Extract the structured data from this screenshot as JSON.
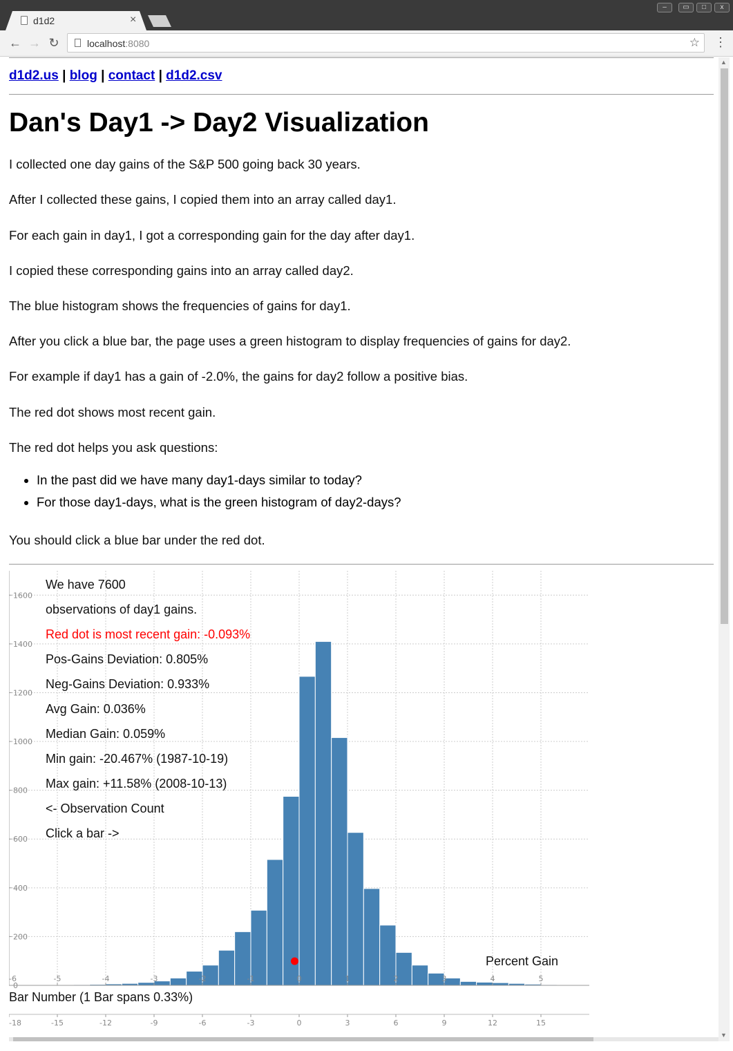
{
  "browser": {
    "tab_title": "d1d2",
    "tab_close": "×",
    "url_host": "localhost",
    "url_port": ":8080"
  },
  "nav": {
    "links": [
      "d1d2.us",
      "blog",
      "contact",
      "d1d2.csv"
    ],
    "separator": "|"
  },
  "page": {
    "title": "Dan's Day1 -> Day2 Visualization",
    "paragraphs": [
      "I collected one day gains of the S&P 500 going back 30 years.",
      "After I collected these gains, I copied them into an array called day1.",
      "For each gain in day1, I got a corresponding gain for the day after day1.",
      "I copied these corresponding gains into an array called day2.",
      "The blue histogram shows the frequencies of gains for day1.",
      "After you click a blue bar, the page uses a green histogram to display frequencies of gains for day2.",
      "For example if day1 has a gain of -2.0%, the gains for day2 follow a positive bias.",
      "The red dot shows most recent gain.",
      "The red dot helps you ask questions:"
    ],
    "questions": [
      "In the past did we have many day1-days similar to today?",
      "For those day1-days, what is the green histogram of day2-days?"
    ],
    "closing": "You should click a blue bar under the red dot."
  },
  "chart_info": {
    "lines": [
      "We have 7600",
      "observations of day1 gains.",
      "Red dot is most recent gain: -0.093%",
      "Pos-Gains Deviation: 0.805%",
      "Neg-Gains Deviation: 0.933%",
      "Avg Gain: 0.036%",
      "Median Gain: 0.059%",
      "Min gain: -20.467% (1987-10-19)",
      "Max gain: +11.58% (2008-10-13)",
      "<- Observation Count",
      "Click a bar ->"
    ],
    "red_line_index": 2,
    "percent_gain_label": "Percent Gain",
    "bar_number_label": "Bar Number (1 Bar spans 0.33%)"
  },
  "colors": {
    "bar": "#4682b4",
    "dot": "#ff0000",
    "link": "#0000cc"
  },
  "chart_data": {
    "type": "bar",
    "title": "",
    "ylabel": "",
    "xlabel": "Bar Number (1 Bar spans 0.33%)",
    "ylim": [
      0,
      1700
    ],
    "y_ticks": [
      0,
      200,
      400,
      600,
      800,
      1000,
      1200,
      1400,
      1600
    ],
    "bar_number_xlim": [
      -18,
      18
    ],
    "bar_number_ticks": [
      -18,
      -15,
      -12,
      -9,
      -6,
      -3,
      0,
      3,
      6,
      9,
      12,
      15
    ],
    "percent_gain_ticks": [
      "-6",
      "-5",
      "-4",
      "-3",
      "-2",
      "-1",
      "0",
      "1",
      "2",
      "3",
      "4",
      "5"
    ],
    "percent_gain_tick_bars": [
      -18,
      -15,
      -12,
      -9,
      -6,
      -3,
      0,
      3,
      6,
      9,
      12,
      15
    ],
    "bar_numbers": [
      -16,
      -15,
      -14,
      -13,
      -12,
      -11,
      -10,
      -9,
      -8,
      -7,
      -6,
      -5,
      -4,
      -3,
      -2,
      -1,
      0,
      1,
      2,
      3,
      4,
      5,
      6,
      7,
      8,
      9,
      10,
      11,
      12,
      13,
      14,
      15,
      16,
      17
    ],
    "values": [
      1,
      2,
      3,
      4,
      6,
      8,
      12,
      18,
      30,
      58,
      83,
      144,
      220,
      308,
      516,
      775,
      1267,
      1410,
      1016,
      627,
      397,
      247,
      135,
      83,
      50,
      30,
      16,
      13,
      11,
      8,
      5,
      3,
      2,
      1
    ],
    "red_dot_gain_percent": -0.093,
    "red_dot_bar_number": -0.28,
    "grid": true
  }
}
